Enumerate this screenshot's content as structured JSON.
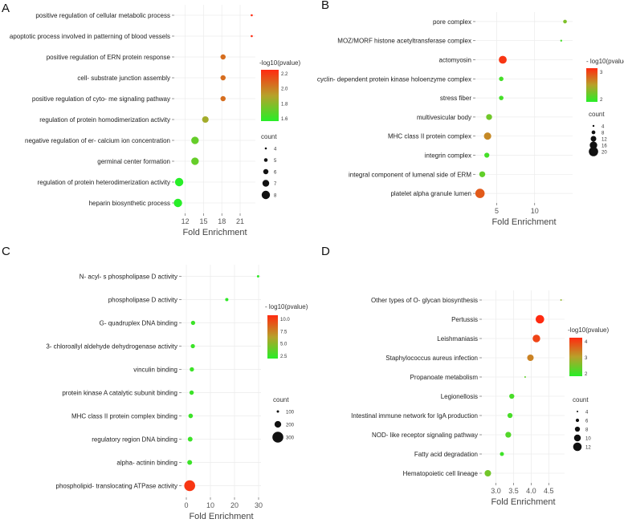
{
  "chart_data": [
    {
      "panel": "A",
      "type": "scatter",
      "xlabel": "Fold Enrichment",
      "xticks": [
        12,
        15,
        18,
        21
      ],
      "xlim": [
        10.2,
        23.5
      ],
      "categories": [
        "positive regulation of cellular metabolic process",
        "apoptotic process involved in patterning of blood vessels",
        "positive regulation of ERN protein response",
        "cell- substrate junction assembly",
        "positive regulation of cyto- me signaling pathway",
        "regulation of protein homodimerization activity",
        "negative regulation of er- calcium ion concentration",
        "germinal center formation",
        "regulation of protein heterodimerization activity",
        "heparin biosynthetic process"
      ],
      "x": [
        22.9,
        22.9,
        18.2,
        18.2,
        18.2,
        15.3,
        13.6,
        13.6,
        11.0,
        10.8
      ],
      "count": [
        4,
        4,
        5,
        5,
        5,
        6,
        7,
        7,
        8,
        8
      ],
      "neglog10p": [
        2.25,
        2.25,
        2.05,
        2.05,
        2.05,
        1.85,
        1.7,
        1.7,
        1.55,
        1.55
      ],
      "color_legend": {
        "title": "-log10(pvalue)",
        "ticks": [
          "2.2",
          "2.0",
          "1.8",
          "1.6"
        ],
        "min": 1.55,
        "max": 2.25
      },
      "size_legend": {
        "title": "count",
        "labels": [
          "4",
          "5",
          "6",
          "7",
          "8"
        ]
      }
    },
    {
      "panel": "B",
      "type": "scatter",
      "xlabel": "Fold Enrichment",
      "xticks": [
        5,
        10
      ],
      "xlim": [
        2.2,
        15
      ],
      "categories": [
        "pore complex",
        "MOZ/MORF histone acetyltransferase complex",
        "actomyosin",
        "cyclin- dependent protein kinase holoenzyme complex",
        "stress fiber",
        "multivesicular body",
        "MHC class II protein complex",
        "integrin complex",
        "integral component of lumenal side of ERM",
        "platelet alpha granule lumen"
      ],
      "x": [
        14.0,
        13.5,
        5.8,
        5.6,
        5.6,
        4.0,
        3.8,
        3.7,
        3.1,
        2.8
      ],
      "count": [
        4,
        3,
        14,
        5,
        5,
        8,
        12,
        6,
        8,
        20
      ],
      "neglog10p": [
        1.9,
        1.5,
        3.2,
        1.5,
        1.5,
        1.8,
        2.5,
        1.5,
        1.7,
        2.9
      ],
      "color_legend": {
        "title": "- log10(pvalue)",
        "ticks": [
          "3",
          "2"
        ],
        "min": 1.3,
        "max": 3.3
      },
      "size_legend": {
        "title": "count",
        "labels": [
          "4",
          "8",
          "12",
          "16",
          "20"
        ]
      }
    },
    {
      "panel": "C",
      "type": "scatter",
      "xlabel": "Fold Enrichment",
      "xticks": [
        0,
        10,
        20,
        30
      ],
      "xlim": [
        -2,
        31
      ],
      "categories": [
        "N- acyl- s phospholipase D activity",
        "phospholipase D activity",
        "G- quadruplex DNA binding",
        "3- chloroallyl aldehyde dehydrogenase activity",
        "vinculin binding",
        "protein kinase A catalytic subunit binding",
        "MHC class II protein complex binding",
        "regulatory region DNA binding",
        "alpha- actinin binding",
        "phospholipid- translocating ATPase activity"
      ],
      "x": [
        29.8,
        16.8,
        2.8,
        2.7,
        2.3,
        2.2,
        1.8,
        1.6,
        1.4,
        1.4
      ],
      "count": [
        5,
        8,
        20,
        20,
        22,
        22,
        25,
        30,
        32,
        330
      ],
      "neglog10p": [
        2.6,
        2.6,
        3.0,
        3.0,
        3.0,
        3.0,
        3.0,
        3.0,
        3.0,
        12.0
      ],
      "color_legend": {
        "title": "- log10(pvalue)",
        "ticks": [
          "10.0",
          "7.5",
          "5.0",
          "2.5"
        ],
        "min": 2.3,
        "max": 12.5
      },
      "size_legend": {
        "title": "count",
        "labels": [
          "100",
          "200",
          "300"
        ]
      }
    },
    {
      "panel": "D",
      "type": "scatter",
      "xlabel": "Fold Enrichment",
      "xticks": [
        3.0,
        3.5,
        4.0,
        4.5
      ],
      "xlim": [
        2.6,
        4.95
      ],
      "categories": [
        "Other types of O- glycan biosynthesis",
        "Pertussis",
        "Leishmaniasis",
        "Staphylococcus aureus infection",
        "Propanoate metabolism",
        "Legionellosis",
        "Intestinal immune network for IgA production",
        "NOD- like receptor signaling pathway",
        "Fatty acid degradation",
        "Hematopoietic cell lineage"
      ],
      "x": [
        4.85,
        4.25,
        4.15,
        3.98,
        3.83,
        3.45,
        3.4,
        3.35,
        3.17,
        2.77
      ],
      "count": [
        4,
        12,
        10,
        8,
        4,
        6,
        6,
        7,
        5,
        8
      ],
      "neglog10p": [
        2.3,
        4.0,
        3.7,
        3.0,
        1.8,
        1.6,
        1.6,
        1.7,
        1.5,
        2.0
      ],
      "color_legend": {
        "title": "-log10(pvalue)",
        "ticks": [
          "4",
          "3",
          "2"
        ],
        "min": 1.3,
        "max": 4.0
      },
      "size_legend": {
        "title": "count",
        "labels": [
          "4",
          "6",
          "8",
          "10",
          "12"
        ]
      }
    }
  ]
}
